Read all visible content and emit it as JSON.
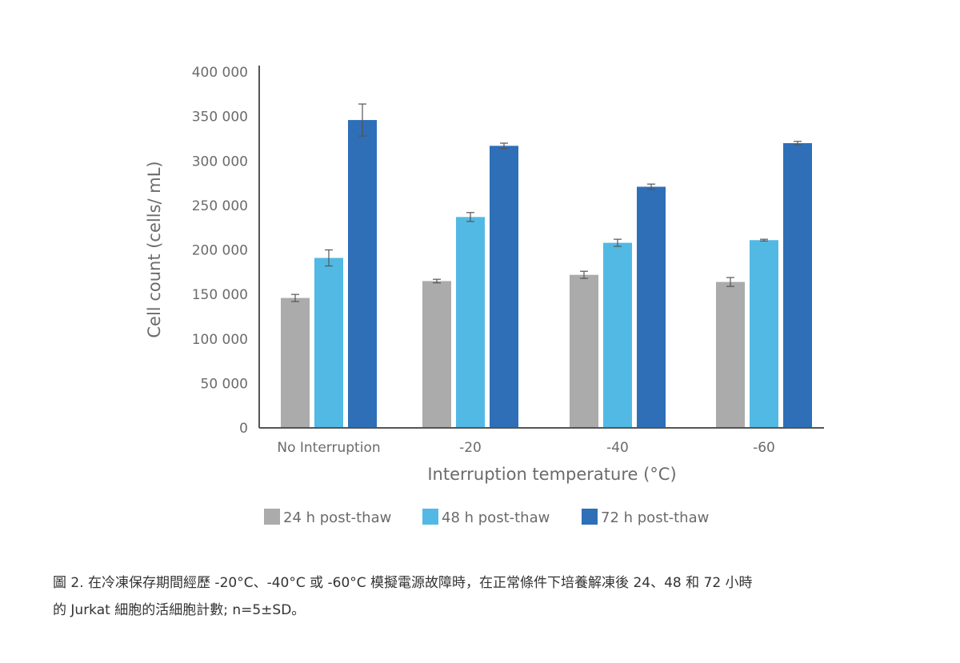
{
  "chart_data": {
    "type": "bar",
    "categories": [
      "No Interruption",
      "-20",
      "-40",
      "-60"
    ],
    "series": [
      {
        "name": "24 h post-thaw",
        "color": "#ababab",
        "values": [
          146000,
          165000,
          172000,
          164000
        ],
        "errors": [
          4000,
          2000,
          4000,
          5000
        ]
      },
      {
        "name": "48 h post-thaw",
        "color": "#52b9e4",
        "values": [
          191000,
          237000,
          208000,
          211000
        ],
        "errors": [
          9000,
          5000,
          4000,
          1000
        ]
      },
      {
        "name": "72 h post-thaw",
        "color": "#2e6fb8",
        "values": [
          346000,
          317000,
          271000,
          320000
        ],
        "errors": [
          18000,
          3000,
          3000,
          2000
        ]
      }
    ],
    "xlabel": "Interruption temperature (°C)",
    "ylabel": "Cell count (cells/ mL)",
    "ylim": [
      0,
      400000
    ],
    "yticks": [
      0,
      50000,
      100000,
      150000,
      200000,
      250000,
      300000,
      350000,
      400000
    ],
    "ytick_labels": [
      "0",
      "50 000",
      "100 000",
      "150 000",
      "200 000",
      "250 000",
      "300 000",
      "350 000",
      "400 000"
    ],
    "legend_position": "bottom",
    "grid": false
  },
  "caption": {
    "line1": "圖 2. 在冷凍保存期間經歷 -20°C、-40°C 或 -60°C 模擬電源故障時，在正常條件下培養解凍後 24、48 和 72 小時",
    "line2": "的 Jurkat 細胞的活細胞計數; n=5±SD。"
  }
}
